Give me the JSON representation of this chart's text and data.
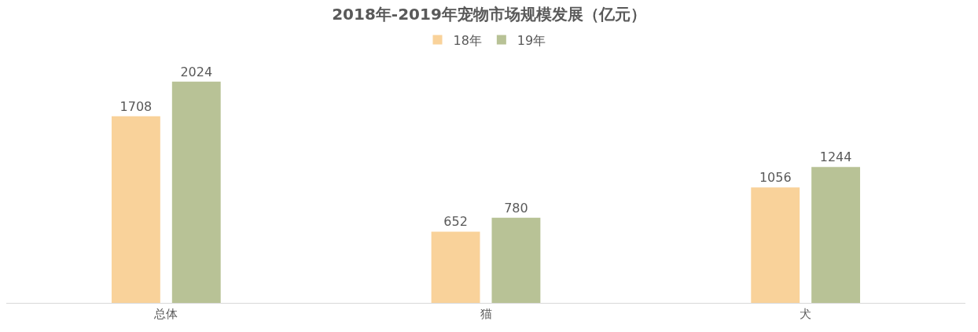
{
  "chart_data": {
    "type": "bar",
    "title": "2018年-2019年宠物市场规模发展（亿元）",
    "categories": [
      "总体",
      "猫",
      "犬"
    ],
    "series": [
      {
        "name": "18年",
        "color": "#f9d29a",
        "values": [
          1708,
          652,
          1056
        ]
      },
      {
        "name": "19年",
        "color": "#b8c296",
        "values": [
          2024,
          780,
          1244
        ]
      }
    ],
    "data_labels": true,
    "legend": "top",
    "tick_labels": "x"
  }
}
